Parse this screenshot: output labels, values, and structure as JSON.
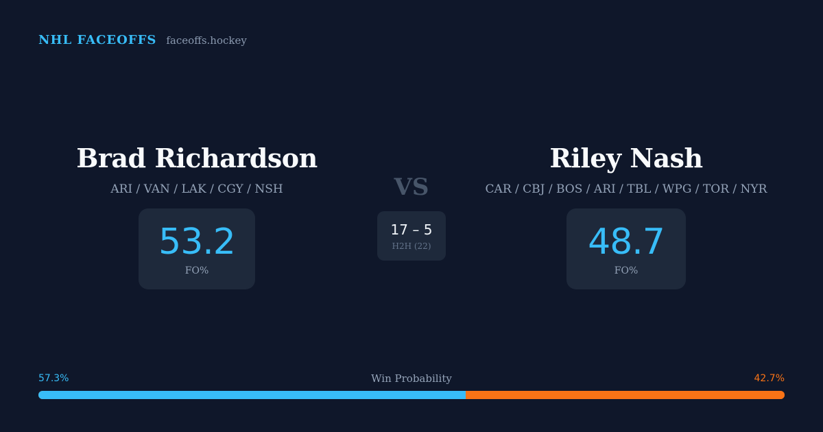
{
  "brand": {
    "title": "NHL FACEOFFS",
    "domain": "faceoffs.hockey"
  },
  "player_left": {
    "name": "Brad Richardson",
    "teams": "ARI / VAN / LAK / CGY / NSH",
    "fo_pct": "53.2",
    "fo_label": "FO%"
  },
  "player_right": {
    "name": "Riley Nash",
    "teams": "CAR / CBJ / BOS / ARI / TBL / WPG / TOR / NYR",
    "fo_pct": "48.7",
    "fo_label": "FO%"
  },
  "matchup": {
    "vs_label": "VS",
    "h2h_score": "17 – 5",
    "h2h_label": "H2H (22)"
  },
  "win_probability": {
    "title": "Win Probability",
    "left_label": "57.3%",
    "right_label": "42.7%",
    "left_value": 57.3,
    "right_value": 42.7
  },
  "colors": {
    "background": "#0f172a",
    "card": "#1e293b",
    "accent_left": "#38bdf8",
    "accent_right": "#f97316"
  }
}
